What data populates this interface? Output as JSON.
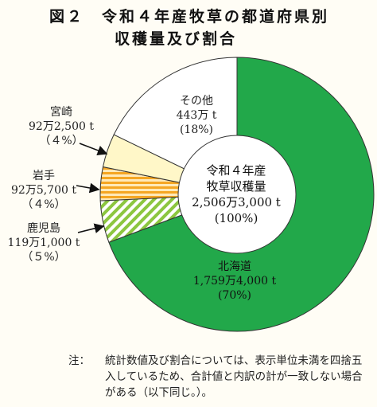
{
  "header": {
    "title_line1": "図２　令和４年産牧草の都道府県別",
    "title_line2": "収穫量及び割合"
  },
  "center_label": {
    "line1": "令和４年産",
    "line2": "牧草収穫量",
    "line3": "2,506万3,000 t",
    "line4": "(100%)"
  },
  "chart_data": {
    "type": "pie",
    "title": "令和４年産牧草の都道府県別収穫量及び割合",
    "total": "2,506万3,000 t",
    "slices": [
      {
        "name": "北海道",
        "value": 70,
        "amount": "1,759万4,000 t",
        "pct": "(70%)",
        "color": "#22a84a",
        "pattern": "solid"
      },
      {
        "name": "鹿児島",
        "value": 5,
        "amount": "119万1,000 t",
        "pct": "（５%）",
        "color": "#8cc63f",
        "pattern": "diagonal"
      },
      {
        "name": "岩手",
        "value": 4,
        "amount": "92万5,700 t",
        "pct": "（４%）",
        "color": "#f5a623",
        "pattern": "horizontal"
      },
      {
        "name": "宮崎",
        "value": 4,
        "amount": "92万2,500 t",
        "pct": "（４%）",
        "color": "#fff7c8",
        "pattern": "solid"
      },
      {
        "name": "その他",
        "value": 18,
        "amount": "443万 t",
        "pct": "(18%)",
        "color": "#ffffff",
        "pattern": "solid"
      }
    ]
  },
  "note": {
    "head": "注：",
    "body": "統計数値及び割合については、表示単位未満を四捨五入しているため、合計値と内訳の計が一致しない場合がある（以下同じ。）。"
  }
}
